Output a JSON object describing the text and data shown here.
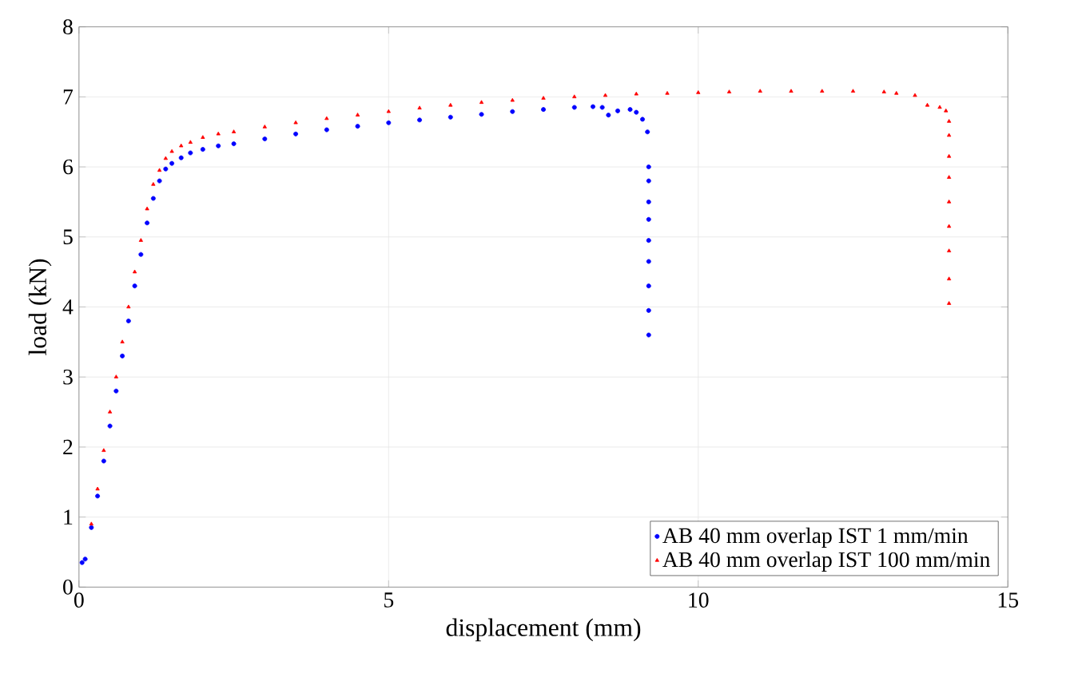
{
  "chart_data": {
    "type": "scatter",
    "xlabel": "displacement (mm)",
    "ylabel": "load (kN)",
    "xlim": [
      0,
      15
    ],
    "ylim": [
      0,
      8
    ],
    "xticks": [
      0,
      5,
      10,
      15
    ],
    "yticks": [
      0,
      1,
      2,
      3,
      4,
      5,
      6,
      7,
      8
    ],
    "grid": true,
    "legend": "bottom right",
    "series": [
      {
        "name": "AB 40 mm overlap IST 1 mm/min",
        "color": "#0000ff",
        "marker": "circle",
        "x": [
          0.05,
          0.1,
          0.2,
          0.3,
          0.4,
          0.5,
          0.6,
          0.7,
          0.8,
          0.9,
          1.0,
          1.1,
          1.2,
          1.3,
          1.4,
          1.5,
          1.65,
          1.8,
          2.0,
          2.25,
          2.5,
          3.0,
          3.5,
          4.0,
          4.5,
          5.0,
          5.5,
          6.0,
          6.5,
          7.0,
          7.5,
          8.0,
          8.3,
          8.45,
          8.55,
          8.7,
          8.9,
          9.0,
          9.1,
          9.18,
          9.2,
          9.2,
          9.2,
          9.2,
          9.2,
          9.2,
          9.2,
          9.2,
          9.2
        ],
        "values": [
          0.35,
          0.4,
          0.85,
          1.3,
          1.8,
          2.3,
          2.8,
          3.3,
          3.8,
          4.3,
          4.75,
          5.2,
          5.55,
          5.8,
          5.97,
          6.05,
          6.13,
          6.2,
          6.25,
          6.3,
          6.33,
          6.4,
          6.47,
          6.53,
          6.58,
          6.63,
          6.67,
          6.71,
          6.75,
          6.79,
          6.82,
          6.85,
          6.86,
          6.85,
          6.74,
          6.8,
          6.82,
          6.78,
          6.68,
          6.5,
          6.0,
          5.8,
          5.5,
          5.25,
          4.95,
          4.65,
          4.3,
          3.95,
          3.6
        ]
      },
      {
        "name": "AB 40 mm overlap IST 100 mm/min",
        "color": "#ff0000",
        "marker": "triangle",
        "x": [
          0.2,
          0.3,
          0.4,
          0.5,
          0.6,
          0.7,
          0.8,
          0.9,
          1.0,
          1.1,
          1.2,
          1.3,
          1.4,
          1.5,
          1.65,
          1.8,
          2.0,
          2.25,
          2.5,
          3.0,
          3.5,
          4.0,
          4.5,
          5.0,
          5.5,
          6.0,
          6.5,
          7.0,
          7.5,
          8.0,
          8.5,
          9.0,
          9.5,
          10.0,
          10.5,
          11.0,
          11.5,
          12.0,
          12.5,
          13.0,
          13.2,
          13.5,
          13.7,
          13.9,
          14.0,
          14.05,
          14.05,
          14.05,
          14.05,
          14.05,
          14.05,
          14.05,
          14.05,
          14.05
        ],
        "values": [
          0.9,
          1.4,
          1.95,
          2.5,
          3.0,
          3.5,
          4.0,
          4.5,
          4.95,
          5.4,
          5.75,
          5.95,
          6.12,
          6.22,
          6.3,
          6.35,
          6.42,
          6.47,
          6.5,
          6.57,
          6.63,
          6.69,
          6.74,
          6.79,
          6.84,
          6.88,
          6.92,
          6.95,
          6.98,
          7.0,
          7.02,
          7.04,
          7.05,
          7.06,
          7.07,
          7.08,
          7.08,
          7.08,
          7.08,
          7.07,
          7.05,
          7.02,
          6.88,
          6.85,
          6.8,
          6.65,
          6.45,
          6.15,
          5.85,
          5.5,
          5.15,
          4.8,
          4.4,
          4.05
        ]
      }
    ]
  }
}
